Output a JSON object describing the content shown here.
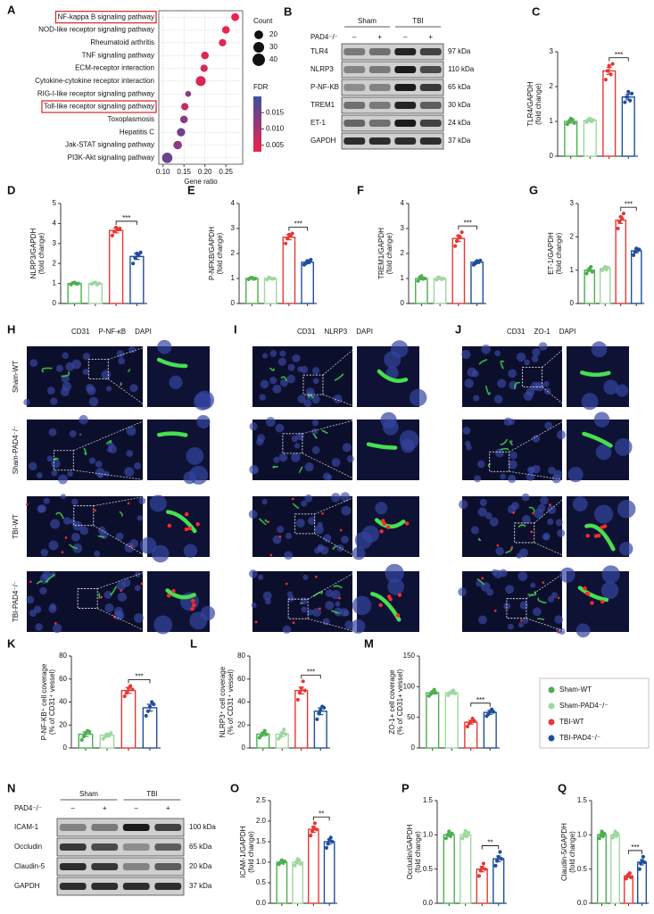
{
  "chart_data": [
    {
      "type": "dot",
      "label": "A",
      "categories": [
        "NF-kappa B signaling pathway",
        "NOD-like receptor signaling pathway",
        "Rheumatoid arthritis",
        "TNF signaling pathway",
        "ECM-receptor interaction",
        "Cytokine-cytokine receptor interaction",
        "RIG-I-like receptor signaling pathway",
        "Toll-like receptor signaling pathway",
        "Toxoplasmosis",
        "Hepatitis C",
        "Jak-STAT signaling pathway",
        "PI3K-Akt signaling pathway"
      ],
      "x": [
        0.272,
        0.25,
        0.242,
        0.2,
        0.198,
        0.19,
        0.16,
        0.152,
        0.15,
        0.143,
        0.135,
        0.11
      ],
      "counts": [
        16,
        15,
        14,
        15,
        14,
        26,
        9,
        14,
        15,
        18,
        19,
        28
      ],
      "fdr": [
        0.0035,
        0.004,
        0.0045,
        0.005,
        0.0055,
        0.005,
        0.013,
        0.007,
        0.0125,
        0.015,
        0.0125,
        0.016
      ],
      "highlight": [
        true,
        false,
        false,
        false,
        false,
        false,
        false,
        true,
        false,
        false,
        false,
        false
      ],
      "xlim": [
        0.09,
        0.29
      ],
      "xticks": [
        {
          "value": 0.1,
          "label": "0.10"
        },
        {
          "value": 0.15,
          "label": "0.15"
        },
        {
          "value": 0.2,
          "label": "0.20"
        },
        {
          "value": 0.25,
          "label": "0.25"
        }
      ],
      "xlabel": "Gene ratio",
      "grid": true,
      "size_title": "Count",
      "size_legend": [
        20,
        30,
        40
      ],
      "color_title": "FDR",
      "color_lim": [
        0.003,
        0.02
      ],
      "color_ticks": [
        {
          "value": 0.015,
          "label": "0.015"
        },
        {
          "value": 0.01,
          "label": "0.010"
        },
        {
          "value": 0.005,
          "label": "0.005"
        }
      ],
      "colors": [
        "#f2204c",
        "#3c50a2"
      ]
    },
    {
      "type": "bar",
      "label": "C",
      "ylabel": [
        "TLR4/GAPDH",
        "(fold change)"
      ],
      "ylim": [
        0,
        3
      ],
      "yticks": [
        0,
        1,
        2,
        3
      ],
      "values": [
        1.0,
        1.03,
        2.45,
        1.7
      ],
      "errors": [
        0.05,
        0.04,
        0.1,
        0.08
      ],
      "points": [
        [
          0.92,
          1.0,
          1.08,
          1.05,
          0.95
        ],
        [
          0.98,
          1.05,
          1.08,
          1.0,
          1.04
        ],
        [
          2.2,
          2.45,
          2.6,
          2.35,
          2.65
        ],
        [
          1.55,
          1.7,
          1.85,
          1.6,
          1.8
        ]
      ],
      "significance": "***"
    },
    {
      "type": "bar",
      "label": "D",
      "ylabel": [
        "NLRP3/GAPDH",
        "(fold change)"
      ],
      "ylim": [
        0,
        5
      ],
      "yticks": [
        0,
        1,
        2,
        3,
        4,
        5
      ],
      "values": [
        1.0,
        1.0,
        3.65,
        2.35
      ],
      "errors": [
        0.04,
        0.04,
        0.12,
        0.15
      ],
      "points": [
        [
          0.95,
          1.02,
          1.05,
          0.98,
          1.0
        ],
        [
          0.97,
          1.03,
          1.05,
          0.95,
          1.0
        ],
        [
          3.4,
          3.6,
          3.8,
          3.7,
          3.75
        ],
        [
          2.0,
          2.3,
          2.5,
          2.4,
          2.55
        ]
      ],
      "significance": "***"
    },
    {
      "type": "bar",
      "label": "E",
      "ylabel": [
        "P-NFKB/GAPDH",
        "(fold change)"
      ],
      "ylim": [
        0,
        4
      ],
      "yticks": [
        0,
        1,
        2,
        3,
        4
      ],
      "values": [
        1.0,
        1.0,
        2.65,
        1.65
      ],
      "errors": [
        0.03,
        0.03,
        0.1,
        0.06
      ],
      "points": [
        [
          0.97,
          1.02,
          1.03,
          0.98,
          1.0
        ],
        [
          0.96,
          1.04,
          1.02,
          0.98,
          1.0
        ],
        [
          2.4,
          2.6,
          2.75,
          2.7,
          2.8
        ],
        [
          1.55,
          1.6,
          1.7,
          1.65,
          1.75
        ]
      ],
      "significance": "***"
    },
    {
      "type": "bar",
      "label": "F",
      "ylabel": [
        "TREM1/GAPDH",
        "(fold change)"
      ],
      "ylim": [
        0,
        4
      ],
      "yticks": [
        0,
        1,
        2,
        3,
        4
      ],
      "values": [
        1.0,
        1.0,
        2.6,
        1.65
      ],
      "errors": [
        0.05,
        0.04,
        0.12,
        0.05
      ],
      "points": [
        [
          0.9,
          1.05,
          1.1,
          0.98,
          1.0
        ],
        [
          0.95,
          1.05,
          1.02,
          0.97,
          1.0
        ],
        [
          2.3,
          2.5,
          2.7,
          2.65,
          2.85
        ],
        [
          1.55,
          1.6,
          1.7,
          1.65,
          1.72
        ]
      ],
      "significance": "***"
    },
    {
      "type": "bar",
      "label": "G",
      "ylabel": [
        "ET-1/GAPDH",
        "(fold change)"
      ],
      "ylim": [
        0,
        3
      ],
      "yticks": [
        0,
        1,
        2,
        3
      ],
      "values": [
        1.0,
        1.05,
        2.5,
        1.58
      ],
      "errors": [
        0.04,
        0.03,
        0.1,
        0.06
      ],
      "points": [
        [
          0.9,
          1.0,
          1.05,
          1.1,
          0.95
        ],
        [
          1.0,
          1.05,
          1.1,
          1.02,
          1.08
        ],
        [
          2.25,
          2.45,
          2.6,
          2.55,
          2.7
        ],
        [
          1.45,
          1.55,
          1.65,
          1.6,
          1.62
        ]
      ],
      "significance": "***"
    },
    {
      "type": "bar",
      "label": "K",
      "ylabel": [
        "P-NF-KB⁺ cell coverage",
        "(% of CD31⁺ vessel)"
      ],
      "ylim": [
        0,
        80
      ],
      "yticks": [
        0,
        20,
        40,
        60,
        80
      ],
      "values": [
        12,
        11,
        50,
        35
      ],
      "errors": [
        2,
        1.5,
        2.5,
        3
      ],
      "points": [
        [
          7,
          10,
          13,
          15,
          14
        ],
        [
          8,
          10,
          12,
          11,
          13
        ],
        [
          45,
          48,
          52,
          54,
          51
        ],
        [
          28,
          32,
          36,
          40,
          38
        ]
      ],
      "significance": "***"
    },
    {
      "type": "bar",
      "label": "L",
      "ylabel": [
        "NLRP3⁺ cell coverage",
        "(% of CD31⁺ vessel)"
      ],
      "ylim": [
        0,
        80
      ],
      "yticks": [
        0,
        20,
        40,
        60,
        80
      ],
      "values": [
        12,
        12,
        50,
        32
      ],
      "errors": [
        1.5,
        2,
        3,
        3
      ],
      "points": [
        [
          9,
          11,
          13,
          15,
          12
        ],
        [
          8,
          10,
          13,
          16,
          12
        ],
        [
          42,
          48,
          52,
          58,
          50
        ],
        [
          25,
          30,
          33,
          36,
          35
        ]
      ],
      "significance": "***"
    },
    {
      "type": "bar",
      "label": "M",
      "ylabel": [
        "ZO-1+ cell coverage",
        "(% of CD31+ vessel)"
      ],
      "ylim": [
        0,
        150
      ],
      "yticks": [
        0,
        50,
        100,
        150
      ],
      "values": [
        90,
        90,
        42,
        58
      ],
      "errors": [
        2,
        2,
        3,
        3
      ],
      "points": [
        [
          85,
          88,
          92,
          95,
          90
        ],
        [
          86,
          90,
          92,
          94,
          89
        ],
        [
          35,
          40,
          43,
          48,
          44
        ],
        [
          52,
          55,
          60,
          63,
          59
        ]
      ],
      "significance": "***"
    },
    {
      "type": "bar",
      "label": "O",
      "ylabel": [
        "ICAM-1/GAPDH",
        "(fold change)"
      ],
      "ylim": [
        0,
        2.5
      ],
      "yticks": [
        {
          "value": 0,
          "label": "0.0"
        },
        {
          "value": 0.5,
          "label": "0.5"
        },
        {
          "value": 1,
          "label": "1.0"
        },
        {
          "value": 1.5,
          "label": "1.5"
        },
        {
          "value": 2,
          "label": "2.0"
        },
        {
          "value": 2.5,
          "label": "2.5"
        }
      ],
      "values": [
        1.0,
        1.0,
        1.8,
        1.5
      ],
      "errors": [
        0.03,
        0.04,
        0.07,
        0.06
      ],
      "points": [
        [
          0.95,
          1.0,
          1.05,
          0.98,
          1.02
        ],
        [
          0.92,
          1.0,
          1.08,
          1.05,
          0.96
        ],
        [
          1.65,
          1.75,
          1.85,
          1.95,
          1.8
        ],
        [
          1.35,
          1.45,
          1.55,
          1.6,
          1.5
        ]
      ],
      "significance": "**"
    },
    {
      "type": "bar",
      "label": "P",
      "ylabel": [
        "Occludin/GAPDH",
        "(fold change)"
      ],
      "ylim": [
        0,
        1.5
      ],
      "yticks": [
        {
          "value": 0,
          "label": "0.0"
        },
        {
          "value": 0.5,
          "label": "0.5"
        },
        {
          "value": 1,
          "label": "1.0"
        },
        {
          "value": 1.5,
          "label": "1.5"
        }
      ],
      "values": [
        1.0,
        1.0,
        0.5,
        0.65
      ],
      "errors": [
        0.02,
        0.03,
        0.04,
        0.04
      ],
      "points": [
        [
          0.95,
          1.0,
          1.05,
          0.98,
          1.02
        ],
        [
          0.95,
          1.0,
          1.06,
          0.98,
          1.03
        ],
        [
          0.4,
          0.48,
          0.52,
          0.58,
          0.5
        ],
        [
          0.55,
          0.62,
          0.68,
          0.75,
          0.65
        ]
      ],
      "significance": "**"
    },
    {
      "type": "bar",
      "label": "Q",
      "ylabel": [
        "Claudin-5/GAPDH",
        "(fold change)"
      ],
      "ylim": [
        0,
        1.5
      ],
      "yticks": [
        {
          "value": 0,
          "label": "0.0"
        },
        {
          "value": 0.5,
          "label": "0.5"
        },
        {
          "value": 1,
          "label": "1.0"
        },
        {
          "value": 1.5,
          "label": "1.5"
        }
      ],
      "values": [
        1.0,
        1.0,
        0.4,
        0.6
      ],
      "errors": [
        0.02,
        0.02,
        0.02,
        0.04
      ],
      "points": [
        [
          0.95,
          1.0,
          1.05,
          0.98,
          1.02
        ],
        [
          0.96,
          1.0,
          1.05,
          0.98,
          1.02
        ],
        [
          0.36,
          0.4,
          0.42,
          0.44,
          0.38
        ],
        [
          0.5,
          0.58,
          0.62,
          0.68,
          0.6
        ]
      ],
      "significance": "***"
    }
  ],
  "legend": {
    "entries": [
      {
        "name": "Sham-WT",
        "color": "#4caf50"
      },
      {
        "name": "Sham-PAD4⁻/⁻",
        "color": "#9ed79f"
      },
      {
        "name": "TBI-WT",
        "color": "#e53935"
      },
      {
        "name": "TBI-PAD4⁻/⁻",
        "color": "#1f4e9c"
      }
    ]
  },
  "blots": [
    {
      "label": "B",
      "groups": [
        "Sham",
        "TBI"
      ],
      "genotype": "PAD4⁻/⁻",
      "signs": [
        "–",
        "+",
        "–",
        "+"
      ],
      "rows": [
        {
          "name": "TLR4",
          "size": "97 kDa"
        },
        {
          "name": "NLRP3",
          "size": "110 kDa"
        },
        {
          "name": "P-NF-KB",
          "size": "65 kDa"
        },
        {
          "name": "TREM1",
          "size": "30 kDa"
        },
        {
          "name": "ET-1",
          "size": "24 kDa"
        },
        {
          "name": "GAPDH",
          "size": "37 kDa"
        }
      ]
    },
    {
      "label": "N",
      "groups": [
        "Sham",
        "TBI"
      ],
      "genotype": "PAD4⁻/⁻",
      "signs": [
        "–",
        "+",
        "–",
        "+"
      ],
      "rows": [
        {
          "name": "ICAM-1",
          "size": "100 kDa"
        },
        {
          "name": "Occludin",
          "size": "65 kDa"
        },
        {
          "name": "Claudin-5",
          "size": "20 kDa"
        },
        {
          "name": "GAPDH",
          "size": "37 kDa"
        }
      ]
    }
  ],
  "micrographs": {
    "rows": [
      "Sham-WT",
      "Sham-PAD4⁻/⁻",
      "TBI-WT",
      "TBI-PAD4⁻/⁻"
    ],
    "panels": [
      {
        "label": "H",
        "stains": [
          {
            "name": "CD31",
            "color": "#3cb44b"
          },
          {
            "name": "P-NF-κB",
            "color": "#e02020"
          },
          {
            "name": "DAPI",
            "color": "#3050d0"
          }
        ]
      },
      {
        "label": "I",
        "stains": [
          {
            "name": "CD31",
            "color": "#3cb44b"
          },
          {
            "name": "NLRP3",
            "color": "#e02020"
          },
          {
            "name": "DAPI",
            "color": "#3050d0"
          }
        ]
      },
      {
        "label": "J",
        "stains": [
          {
            "name": "CD31",
            "color": "#3cb44b"
          },
          {
            "name": "ZO-1",
            "color": "#e02020"
          },
          {
            "name": "DAPI",
            "color": "#3050d0"
          }
        ]
      }
    ]
  }
}
